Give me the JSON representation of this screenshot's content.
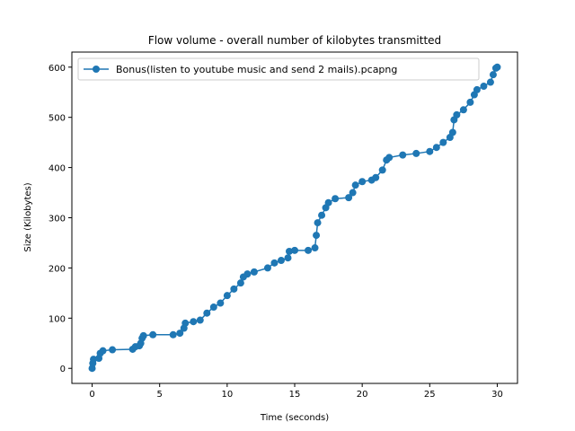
{
  "chart_data": {
    "type": "line",
    "title": "Flow volume - overall number of kilobytes transmitted",
    "x_label": "Time (seconds)",
    "y_label": "Size (Kilobytes)",
    "x": [
      0,
      0.05,
      0.1,
      0.5,
      0.6,
      0.8,
      1.5,
      3,
      3.2,
      3.5,
      3.6,
      3.7,
      3.8,
      4.5,
      6,
      6.5,
      6.8,
      6.9,
      7.5,
      8,
      8.5,
      9,
      9.5,
      10,
      10.5,
      11,
      11.2,
      11.5,
      12,
      13,
      13.5,
      14,
      14.5,
      14.6,
      15,
      16,
      16.5,
      16.6,
      16.7,
      17,
      17.3,
      17.5,
      18,
      19,
      19.3,
      19.5,
      20,
      20.7,
      21,
      21.5,
      21.8,
      22,
      23,
      24,
      25,
      25.5,
      26,
      26.5,
      26.7,
      26.8,
      27,
      27.5,
      28,
      28.3,
      28.5,
      29,
      29.5,
      29.7,
      29.9,
      30
    ],
    "series": [
      {
        "name": "Bonus(listen to youtube music and send 2 mails).pcapng",
        "color": "#1f77b4",
        "values": [
          0,
          10,
          18,
          20,
          30,
          35,
          37,
          38,
          43,
          45,
          50,
          60,
          65,
          67,
          67,
          70,
          80,
          90,
          93,
          96,
          110,
          122,
          130,
          145,
          158,
          170,
          182,
          188,
          192,
          200,
          210,
          215,
          220,
          233,
          235,
          235,
          240,
          265,
          290,
          305,
          320,
          330,
          338,
          340,
          350,
          365,
          372,
          375,
          380,
          395,
          415,
          420,
          425,
          428,
          432,
          440,
          450,
          460,
          470,
          495,
          505,
          515,
          530,
          545,
          555,
          562,
          570,
          585,
          598,
          600
        ]
      }
    ],
    "xlim": [
      -1.5,
      31.5
    ],
    "ylim": [
      -30,
      630
    ],
    "xticks": [
      0,
      5,
      10,
      15,
      20,
      25,
      30
    ],
    "yticks": [
      0,
      100,
      200,
      300,
      400,
      500,
      600
    ],
    "legend": "upper-left"
  }
}
